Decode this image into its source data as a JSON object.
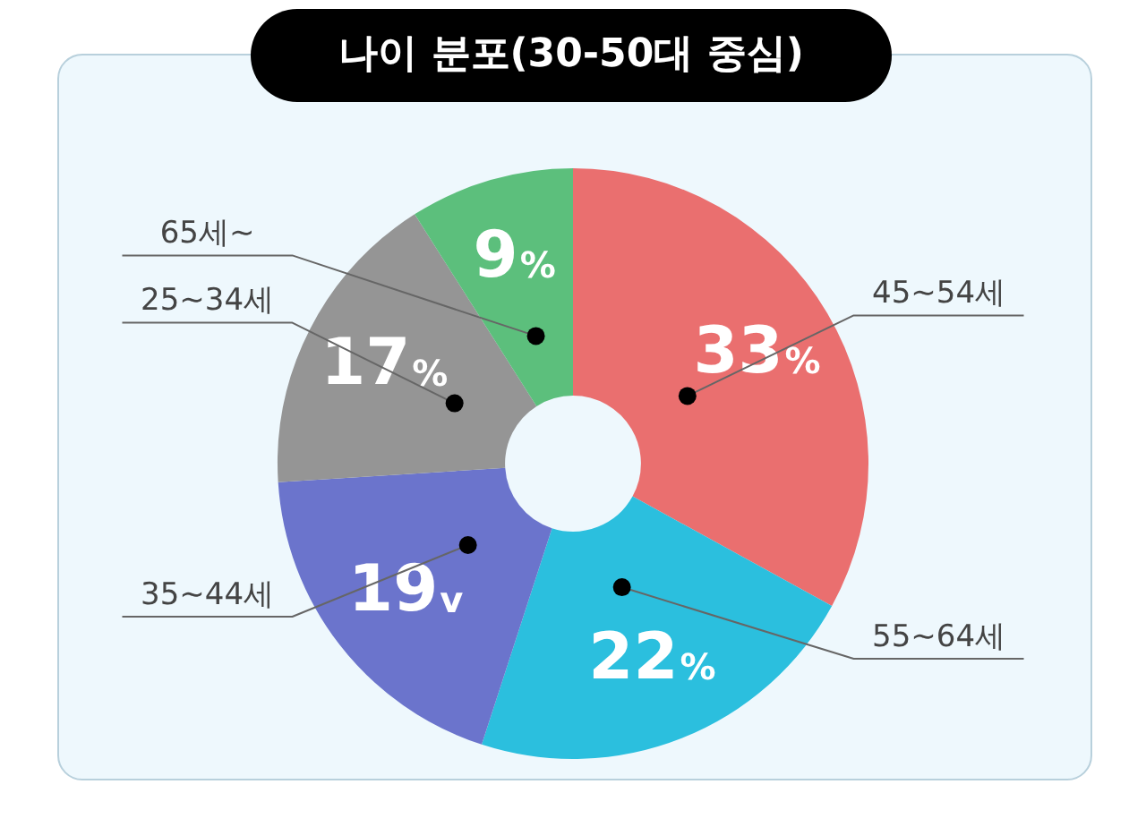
{
  "chart_data": {
    "type": "donut",
    "title": "나이 분포(30-50대 중심)",
    "categories": [
      "45~54세",
      "55~64세",
      "35~44세",
      "25~34세",
      "65세~"
    ],
    "values": [
      33,
      22,
      19,
      17,
      9
    ],
    "colors": [
      "#ea6f6f",
      "#2bbfde",
      "#6b74cc",
      "#959595",
      "#5cbf7c"
    ],
    "value_labels": [
      "33%",
      "22%",
      "19v",
      "17%",
      "9%"
    ],
    "legend": false
  }
}
